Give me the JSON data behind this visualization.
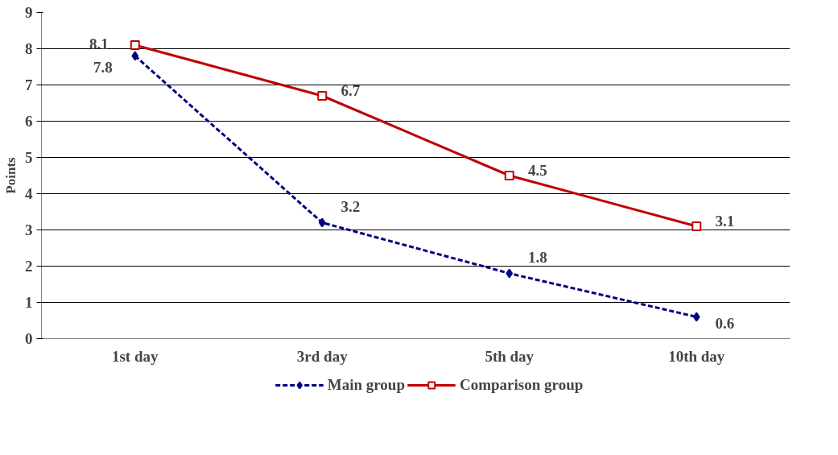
{
  "chart_data": {
    "type": "line",
    "ylabel": "Points",
    "categories": [
      "1st day",
      "3rd day",
      "5th day",
      "10th day"
    ],
    "series": [
      {
        "name": "Main group",
        "color": "#000080",
        "values": [
          7.8,
          3.2,
          1.8,
          0.6
        ],
        "marker": "diamond",
        "line_style": "dashed"
      },
      {
        "name": "Comparison group",
        "color": "#c00000",
        "values": [
          8.1,
          6.7,
          4.5,
          3.1
        ],
        "marker": "square",
        "line_style": "solid"
      }
    ],
    "ylim": [
      0,
      9
    ],
    "yticks": [
      0,
      1,
      2,
      3,
      4,
      5,
      6,
      7,
      8,
      9
    ],
    "grid": "y",
    "legend": "bottom",
    "data_labels": true
  }
}
